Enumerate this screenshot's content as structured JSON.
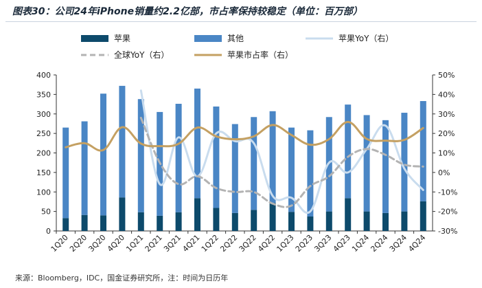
{
  "header": {
    "title": "图表30：公司24年iPhone销量约2.2亿部，市占率保持较稳定（单位：百万部）"
  },
  "footer": {
    "source": "来源：Bloomberg，IDC，国金证券研究所，注：时间为日历年"
  },
  "colors": {
    "apple_bar": "#0d4a6b",
    "other_bar": "#4a86c5",
    "apple_yoy": "#c9dcee",
    "global_yoy": "#b3b3b3",
    "share": "#c4a062"
  },
  "chart_data": {
    "type": "bar",
    "stacked": true,
    "categories": [
      "1Q20",
      "2Q20",
      "3Q20",
      "4Q20",
      "1Q21",
      "2Q21",
      "3Q21",
      "4Q21",
      "1Q22",
      "2Q22",
      "3Q22",
      "4Q22",
      "1Q23",
      "2Q23",
      "3Q23",
      "4Q23",
      "1Q24",
      "2Q24",
      "3Q24",
      "4Q24"
    ],
    "y_left": {
      "ticks": [
        "0",
        "50",
        "100",
        "150",
        "200",
        "250",
        "300",
        "350",
        "400"
      ],
      "ylim": [
        0,
        400
      ]
    },
    "y_right": {
      "ticks": [
        "-30%",
        "-20%",
        "-10%",
        "0%",
        "10%",
        "20%",
        "30%",
        "40%",
        "50%"
      ],
      "ylim": [
        -30,
        50
      ]
    },
    "grid": false,
    "legend_position": "top",
    "series": [
      {
        "name": "苹果",
        "kind": "bar",
        "axis": "left",
        "values": [
          33,
          41,
          40,
          86,
          48,
          39,
          48,
          84,
          59,
          46,
          54,
          72,
          49,
          37,
          50,
          84,
          50,
          46,
          50,
          76
        ]
      },
      {
        "name": "其他",
        "kind": "bar",
        "axis": "left",
        "values": [
          232,
          240,
          312,
          286,
          290,
          266,
          278,
          281,
          260,
          228,
          238,
          235,
          216,
          221,
          242,
          240,
          247,
          238,
          253,
          257
        ]
      },
      {
        "name": "苹果YoY（右）",
        "kind": "line",
        "axis": "right",
        "values": [
          null,
          null,
          null,
          null,
          42,
          -6,
          18,
          -2,
          20,
          16,
          15,
          -12,
          -13,
          -20,
          5,
          0,
          12,
          24,
          2,
          -9
        ]
      },
      {
        "name": "全球YoY（右）",
        "kind": "line",
        "axis": "right",
        "values": [
          null,
          null,
          null,
          null,
          28,
          5,
          -6,
          -2,
          -8,
          -10,
          -10,
          -16,
          -17,
          -7,
          -2,
          8,
          12,
          9,
          4,
          3
        ]
      },
      {
        "name": "苹果市占率（右）",
        "kind": "line",
        "axis": "right",
        "values": [
          12.9,
          15.0,
          11.5,
          23.2,
          14.8,
          13.5,
          14.7,
          23.0,
          18.5,
          17.0,
          18.5,
          24.3,
          19.2,
          14.2,
          17.1,
          25.9,
          17.2,
          16.3,
          16.7,
          22.8
        ]
      }
    ]
  }
}
